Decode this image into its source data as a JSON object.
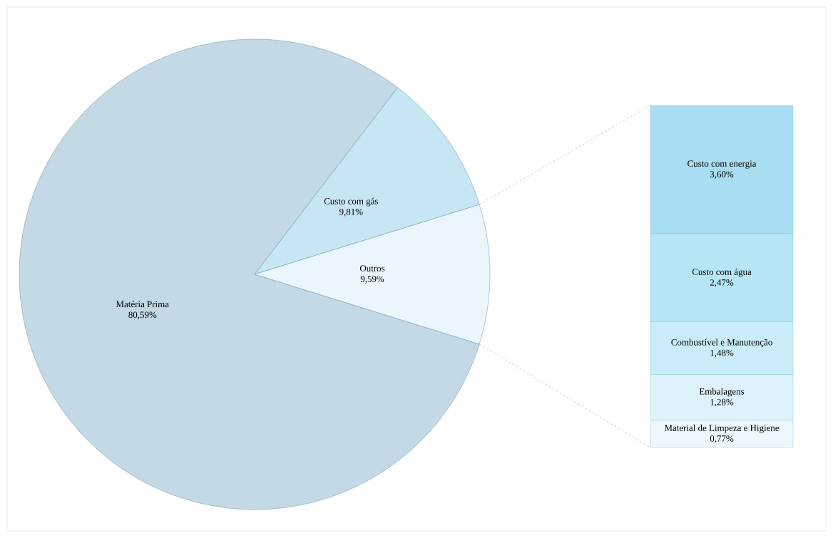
{
  "chart_data": [
    {
      "type": "pie",
      "categories": [
        "Matéria Prima",
        "Custo com gás",
        "Outros"
      ],
      "values": [
        80.59,
        9.81,
        9.59
      ],
      "value_labels": [
        "80,59%",
        "9,81%",
        "9,59%"
      ],
      "colors": [
        "#c3d9e5",
        "#c6e6f4",
        "#eaf6fc"
      ]
    },
    {
      "type": "bar",
      "stacked": true,
      "categories": [
        null
      ],
      "series": [
        {
          "name": "Material de Limpeza e Higiene",
          "color": "#eef8fc",
          "values": [
            0.77
          ],
          "value_labels": [
            "0,77%"
          ]
        },
        {
          "name": "Embalagens",
          "color": "#ddf2fa",
          "values": [
            1.28
          ],
          "value_labels": [
            "1,28%"
          ]
        },
        {
          "name": "Combustível e Manutenção",
          "color": "#c9ecf8",
          "values": [
            1.48
          ],
          "value_labels": [
            "1,48%"
          ]
        },
        {
          "name": "Custo com água",
          "color": "#b6e5f5",
          "values": [
            2.47
          ],
          "value_labels": [
            "2,47%"
          ]
        },
        {
          "name": "Custo com energia",
          "color": "#a9def2",
          "values": [
            3.6
          ],
          "value_labels": [
            "3,60%"
          ]
        }
      ]
    }
  ]
}
